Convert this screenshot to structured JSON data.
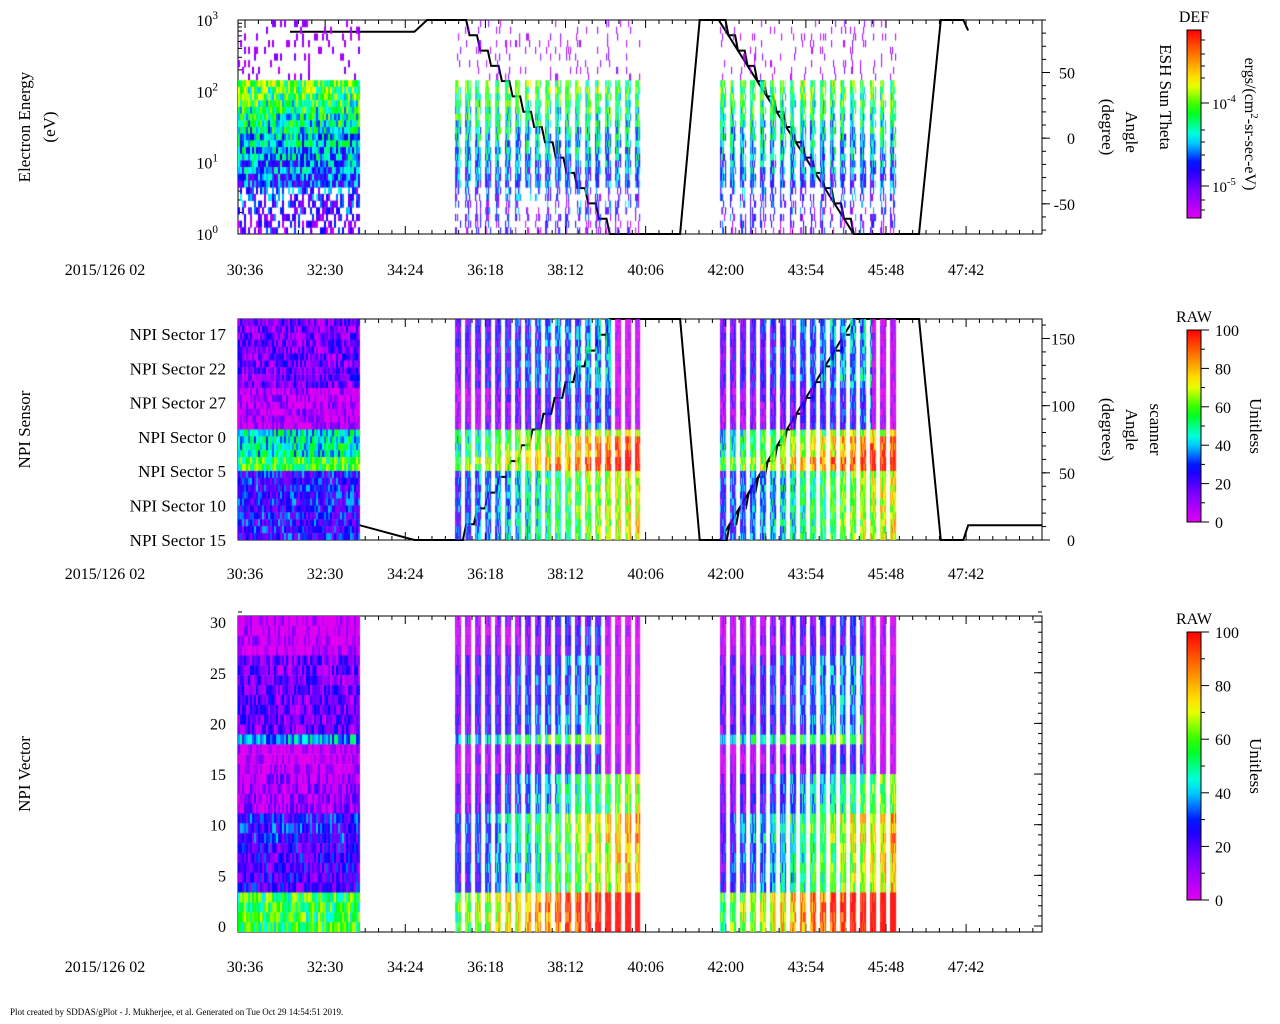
{
  "chart_data": [
    {
      "type": "heatmap",
      "title": "",
      "ylabel": [
        "Electron Energy",
        "(eV)"
      ],
      "yscale": "log",
      "ylim": [
        1,
        1000
      ],
      "ytick_labels": [
        "10",
        "10",
        "10",
        "10"
      ],
      "ytick_exponents": [
        "0",
        "1",
        "2",
        "3"
      ],
      "xlim_seconds_after_0230": [
        26,
        1170
      ],
      "date_label": "2015/126 02",
      "xtick_labels": [
        "30:36",
        "32:30",
        "34:24",
        "36:18",
        "38:12",
        "40:06",
        "42:00",
        "43:54",
        "45:48",
        "47:42"
      ],
      "xtick_seconds_after_0230": [
        36,
        150,
        264,
        378,
        492,
        606,
        720,
        834,
        948,
        1062
      ],
      "data_intervals_seconds": [
        [
          26,
          199,
          "dense"
        ],
        [
          335,
          598,
          "striped"
        ],
        [
          712,
          965,
          "striped"
        ]
      ],
      "right_axis": {
        "label": [
          "ESH Sun Theta",
          "Angle",
          "(degree)"
        ],
        "ylim": [
          -73,
          90
        ],
        "tick_values": [
          50,
          0,
          -50
        ],
        "tick_labels": [
          "50",
          "0",
          "-50"
        ]
      },
      "line": {
        "name": "ESH Sun Theta Angle",
        "points": [
          [
            100,
            81
          ],
          [
            277,
            81
          ],
          [
            295,
            90
          ],
          [
            340,
            90
          ]
        ],
        "stairs": [
          [
            [
              340,
              90
            ],
            [
              555,
              -73
            ],
            14
          ],
          [
            [
              710,
              90
            ],
            [
              902,
              -73
            ],
            14
          ]
        ],
        "more_points": [
          [
            555,
            -73
          ],
          [
            655,
            -73
          ],
          [
            683,
            90
          ],
          [
            710,
            90
          ],
          [
            902,
            -73
          ],
          [
            995,
            -73
          ],
          [
            1026,
            90
          ],
          [
            1058,
            90
          ],
          [
            1065,
            82
          ]
        ]
      },
      "colorbar": {
        "title": "DEF",
        "label": "ergs/(cm²-sr-sec-eV)",
        "label_parts": [
          "ergs/(cm",
          "2",
          "-sr-sec-eV)"
        ],
        "tick_labels": [
          "10",
          "10"
        ],
        "tick_exponents": [
          "-4",
          "-5"
        ],
        "scale": "log"
      }
    },
    {
      "type": "heatmap",
      "ylabel": [
        "NPI Sensor"
      ],
      "ytick_labels": [
        "NPI Sector 17",
        "NPI Sector 22",
        "NPI Sector 27",
        "NPI Sector 0",
        "NPI Sector 5",
        "NPI Sector 10",
        "NPI Sector 15"
      ],
      "xlim_seconds_after_0230": [
        26,
        1170
      ],
      "date_label": "2015/126 02",
      "xtick_labels": [
        "30:36",
        "32:30",
        "34:24",
        "36:18",
        "38:12",
        "40:06",
        "42:00",
        "43:54",
        "45:48",
        "47:42"
      ],
      "data_intervals_seconds": [
        [
          26,
          199,
          "dense"
        ],
        [
          335,
          598,
          "striped"
        ],
        [
          712,
          965,
          "striped"
        ]
      ],
      "right_axis": {
        "label": [
          "scanner",
          "Angle",
          "(degrees)"
        ],
        "ylim": [
          0,
          164.5
        ],
        "tick_values": [
          150,
          100,
          50,
          0
        ],
        "tick_labels": [
          "150",
          "100",
          "50",
          "0"
        ]
      },
      "line": {
        "name": "scanner Angle",
        "points": [
          [
            26,
            11
          ],
          [
            199,
            11
          ],
          [
            277,
            0
          ],
          [
            335,
            0
          ]
        ],
        "stairs": [
          [
            [
              335,
              0
            ],
            [
              555,
              164.5
            ],
            14
          ],
          [
            [
              712,
              0
            ],
            [
              902,
              164.5
            ],
            14
          ]
        ],
        "more_points": [
          [
            555,
            164.5
          ],
          [
            655,
            164.5
          ],
          [
            683,
            0
          ],
          [
            712,
            0
          ],
          [
            902,
            164.5
          ],
          [
            995,
            164.5
          ],
          [
            1026,
            0
          ],
          [
            1058,
            0
          ],
          [
            1065,
            11
          ],
          [
            1170,
            11
          ]
        ]
      },
      "colorbar": {
        "title": "RAW",
        "label": "Unitless",
        "ylim": [
          0,
          100
        ],
        "tick_labels": [
          "100",
          "80",
          "60",
          "40",
          "20",
          "0"
        ]
      }
    },
    {
      "type": "heatmap",
      "ylabel": [
        "NPI Vector"
      ],
      "ylim": [
        -0.5,
        31.5
      ],
      "ytick_labels": [
        "30",
        "25",
        "20",
        "15",
        "10",
        "5",
        "0"
      ],
      "ytick_values": [
        30,
        25,
        20,
        15,
        10,
        5,
        0
      ],
      "xlim_seconds_after_0230": [
        26,
        1170
      ],
      "date_label": "2015/126 02",
      "xtick_labels": [
        "30:36",
        "32:30",
        "34:24",
        "36:18",
        "38:12",
        "40:06",
        "42:00",
        "43:54",
        "45:48",
        "47:42"
      ],
      "data_intervals_seconds": [
        [
          26,
          199,
          "dense"
        ],
        [
          335,
          598,
          "striped"
        ],
        [
          712,
          965,
          "striped"
        ]
      ],
      "colorbar": {
        "title": "RAW",
        "label": "Unitless",
        "ylim": [
          0,
          100
        ],
        "tick_labels": [
          "100",
          "80",
          "60",
          "40",
          "20",
          "0"
        ]
      }
    }
  ],
  "footer": "Plot created by SDDAS/gPlot - J. Mukherjee, et al.  Generated on Tue Oct 29 14:54:51 2019."
}
